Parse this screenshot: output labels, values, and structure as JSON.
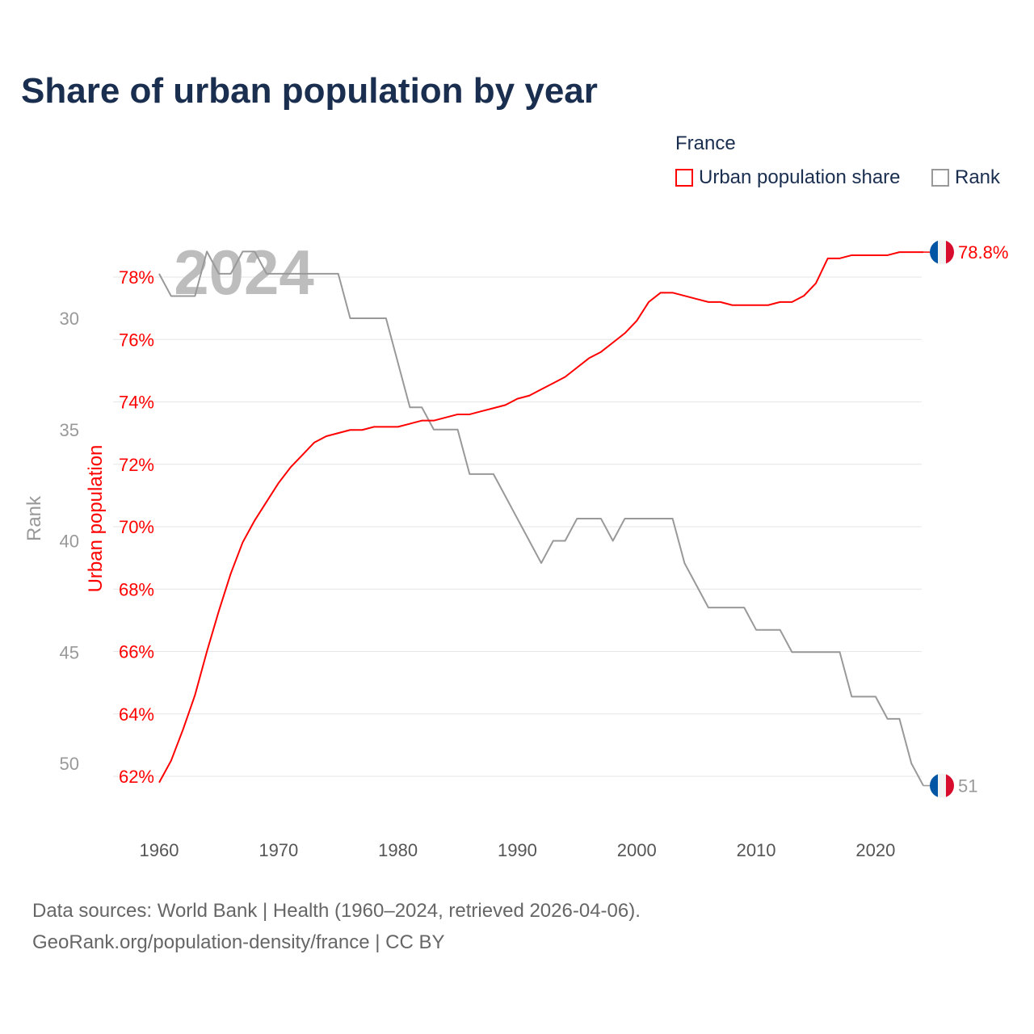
{
  "title": "Share of urban population by year",
  "legend": {
    "title": "France",
    "items": [
      {
        "label": "Urban population share",
        "color": "#ff0000"
      },
      {
        "label": "Rank",
        "color": "#999999"
      }
    ]
  },
  "footer": {
    "line1": "Data sources: World Bank | Health (1960–2024, retrieved 2026-04-06).",
    "line2": "GeoRank.org/population-density/france | CC BY"
  },
  "chart_data": {
    "type": "line",
    "title": "Share of urban population by year",
    "watermark_year": "2024",
    "xlabel": "",
    "ylabel_left": "Urban population",
    "ylabel_rank": "Rank",
    "xlim": [
      1960,
      2024
    ],
    "x_ticks": [
      1960,
      1970,
      1980,
      1990,
      2000,
      2010,
      2020
    ],
    "ylim_urban": [
      62,
      78
    ],
    "y_ticks_urban": [
      "62%",
      "64%",
      "66%",
      "68%",
      "70%",
      "72%",
      "74%",
      "76%",
      "78%"
    ],
    "ylim_rank": [
      30,
      50
    ],
    "y_ticks_rank": [
      30,
      35,
      40,
      45,
      50
    ],
    "grid": true,
    "legend_position": "top-right",
    "x": [
      1960,
      1961,
      1962,
      1963,
      1964,
      1965,
      1966,
      1967,
      1968,
      1969,
      1970,
      1971,
      1972,
      1973,
      1974,
      1975,
      1976,
      1977,
      1978,
      1979,
      1980,
      1981,
      1982,
      1983,
      1984,
      1985,
      1986,
      1987,
      1988,
      1989,
      1990,
      1991,
      1992,
      1993,
      1994,
      1995,
      1996,
      1997,
      1998,
      1999,
      2000,
      2001,
      2002,
      2003,
      2004,
      2005,
      2006,
      2007,
      2008,
      2009,
      2010,
      2011,
      2012,
      2013,
      2014,
      2015,
      2016,
      2017,
      2018,
      2019,
      2020,
      2021,
      2022,
      2023,
      2024
    ],
    "series": [
      {
        "name": "Urban population share",
        "color": "#ff0000",
        "axis": "urban",
        "end_label": "78.8%",
        "values": [
          61.8,
          62.5,
          63.5,
          64.6,
          66.0,
          67.3,
          68.5,
          69.5,
          70.2,
          70.8,
          71.4,
          71.9,
          72.3,
          72.7,
          72.9,
          73.0,
          73.1,
          73.1,
          73.2,
          73.2,
          73.2,
          73.3,
          73.4,
          73.4,
          73.5,
          73.6,
          73.6,
          73.7,
          73.8,
          73.9,
          74.1,
          74.2,
          74.4,
          74.6,
          74.8,
          75.1,
          75.4,
          75.6,
          75.9,
          76.2,
          76.6,
          77.2,
          77.5,
          77.5,
          77.4,
          77.3,
          77.2,
          77.2,
          77.1,
          77.1,
          77.1,
          77.1,
          77.2,
          77.2,
          77.4,
          77.8,
          78.6,
          78.6,
          78.7,
          78.7,
          78.7,
          78.7,
          78.8,
          78.8,
          78.8
        ]
      },
      {
        "name": "Rank",
        "color": "#999999",
        "axis": "rank",
        "end_label": "51",
        "values": [
          28,
          29,
          29,
          29,
          27,
          28,
          28,
          27,
          27,
          28,
          28,
          28,
          28,
          28,
          28,
          28,
          30,
          30,
          30,
          30,
          32,
          34,
          34,
          35,
          35,
          35,
          37,
          37,
          37,
          38,
          39,
          40,
          41,
          40,
          40,
          39,
          39,
          39,
          40,
          39,
          39,
          39,
          39,
          39,
          41,
          42,
          43,
          43,
          43,
          43,
          44,
          44,
          44,
          45,
          45,
          45,
          45,
          45,
          47,
          47,
          47,
          48,
          48,
          50,
          51
        ]
      }
    ]
  }
}
